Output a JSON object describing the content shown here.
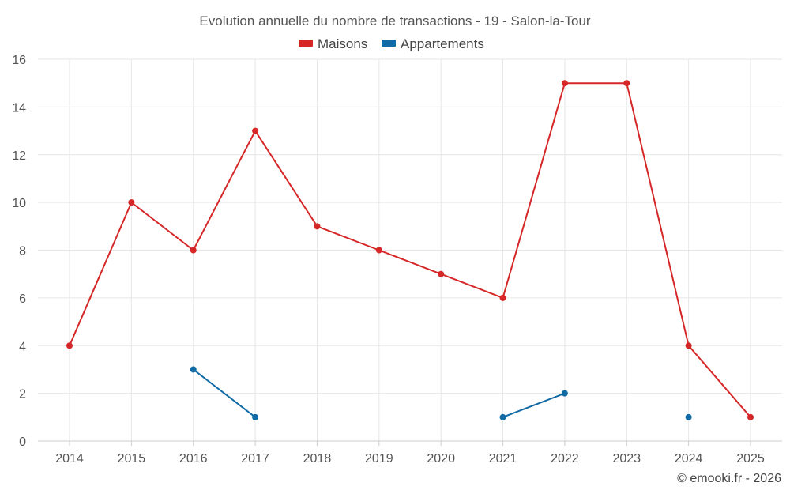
{
  "chart_data": {
    "type": "line",
    "title": "Evolution annuelle du nombre de transactions - 19 - Salon-la-Tour",
    "categories": [
      "2014",
      "2015",
      "2016",
      "2017",
      "2018",
      "2019",
      "2020",
      "2021",
      "2022",
      "2023",
      "2024",
      "2025"
    ],
    "series": [
      {
        "name": "Maisons",
        "color": "#d62728",
        "values": [
          4,
          10,
          8,
          13,
          9,
          8,
          7,
          6,
          15,
          15,
          4,
          1
        ]
      },
      {
        "name": "Appartements",
        "color": "#0f6aa6",
        "values": [
          null,
          null,
          3,
          1,
          null,
          null,
          null,
          1,
          2,
          null,
          1,
          null
        ]
      }
    ],
    "ylim": [
      0,
      16
    ],
    "yticks": [
      "0",
      "2",
      "4",
      "6",
      "8",
      "10",
      "12",
      "14",
      "16"
    ],
    "xlabel": "",
    "ylabel": "",
    "grid": true,
    "legend": "top-center"
  },
  "credit": "© emooki.fr - 2026"
}
